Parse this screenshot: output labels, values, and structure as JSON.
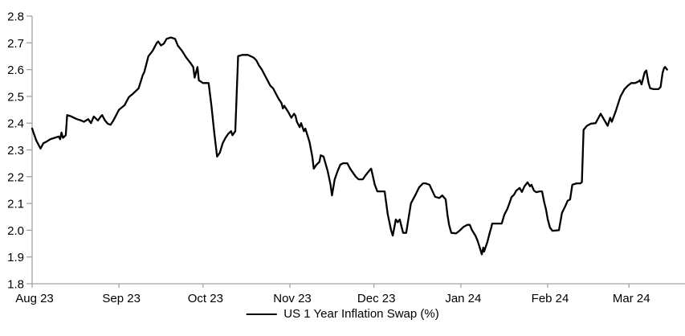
{
  "chart_data": {
    "type": "line",
    "title": "",
    "xlabel": "",
    "ylabel": "",
    "x_unit": "days since 1 Aug 2023",
    "xlim": [
      0,
      233
    ],
    "ylim": [
      1.8,
      2.8
    ],
    "grid": false,
    "legend_position": "bottom-center",
    "axis_color": "#a3a3a3",
    "text_color": "#000000",
    "y_ticks": [
      {
        "label": "2.8",
        "value": 2.8
      },
      {
        "label": "2.7",
        "value": 2.7
      },
      {
        "label": "2.6",
        "value": 2.6
      },
      {
        "label": "2.5",
        "value": 2.5
      },
      {
        "label": "2.4",
        "value": 2.4
      },
      {
        "label": "2.3",
        "value": 2.3
      },
      {
        "label": "2.2",
        "value": 2.2
      },
      {
        "label": "2.1",
        "value": 2.1
      },
      {
        "label": "2.0",
        "value": 2.0
      },
      {
        "label": "1.9",
        "value": 1.9
      },
      {
        "label": "1.8",
        "value": 1.8
      }
    ],
    "x_ticks": [
      {
        "label": "Aug 23",
        "day": 0
      },
      {
        "label": "Sep 23",
        "day": 31
      },
      {
        "label": "Oct 23",
        "day": 61
      },
      {
        "label": "Nov 23",
        "day": 92
      },
      {
        "label": "Dec 23",
        "day": 122
      },
      {
        "label": "Jan 24",
        "day": 153
      },
      {
        "label": "Feb 24",
        "day": 184
      },
      {
        "label": "Mar 24",
        "day": 213
      }
    ],
    "series": [
      {
        "name": "US 1 Year Inflation Swap (%)",
        "color": "#000000",
        "points": [
          [
            0,
            2.38
          ],
          [
            0.5,
            2.365
          ],
          [
            1.5,
            2.335
          ],
          [
            2.5,
            2.315
          ],
          [
            3,
            2.305
          ],
          [
            4,
            2.325
          ],
          [
            5,
            2.33
          ],
          [
            6.5,
            2.34
          ],
          [
            8,
            2.345
          ],
          [
            9.5,
            2.35
          ],
          [
            10,
            2.34
          ],
          [
            10.5,
            2.365
          ],
          [
            11,
            2.345
          ],
          [
            12,
            2.355
          ],
          [
            12.5,
            2.43
          ],
          [
            14,
            2.425
          ],
          [
            16,
            2.415
          ],
          [
            17.5,
            2.41
          ],
          [
            18.5,
            2.405
          ],
          [
            20,
            2.415
          ],
          [
            21,
            2.4
          ],
          [
            22,
            2.425
          ],
          [
            23.5,
            2.41
          ],
          [
            24.5,
            2.425
          ],
          [
            25,
            2.43
          ],
          [
            26,
            2.41
          ],
          [
            27,
            2.398
          ],
          [
            28,
            2.394
          ],
          [
            29,
            2.41
          ],
          [
            30,
            2.43
          ],
          [
            31,
            2.45
          ],
          [
            33,
            2.467
          ],
          [
            34.5,
            2.497
          ],
          [
            36,
            2.51
          ],
          [
            38,
            2.53
          ],
          [
            39.5,
            2.58
          ],
          [
            40,
            2.59
          ],
          [
            41.5,
            2.65
          ],
          [
            43,
            2.67
          ],
          [
            44.5,
            2.7
          ],
          [
            45,
            2.705
          ],
          [
            46,
            2.69
          ],
          [
            47,
            2.697
          ],
          [
            48,
            2.715
          ],
          [
            49.5,
            2.72
          ],
          [
            51,
            2.715
          ],
          [
            52,
            2.69
          ],
          [
            53.5,
            2.67
          ],
          [
            55,
            2.645
          ],
          [
            56.5,
            2.625
          ],
          [
            57.5,
            2.61
          ],
          [
            58,
            2.57
          ],
          [
            59,
            2.61
          ],
          [
            59.5,
            2.56
          ],
          [
            61,
            2.55
          ],
          [
            63,
            2.55
          ],
          [
            64,
            2.465
          ],
          [
            65,
            2.365
          ],
          [
            66,
            2.275
          ],
          [
            67,
            2.29
          ],
          [
            68,
            2.325
          ],
          [
            69,
            2.345
          ],
          [
            70,
            2.36
          ],
          [
            71,
            2.37
          ],
          [
            71.5,
            2.355
          ],
          [
            72.5,
            2.37
          ],
          [
            73.5,
            2.65
          ],
          [
            75,
            2.655
          ],
          [
            77,
            2.655
          ],
          [
            78,
            2.65
          ],
          [
            79,
            2.645
          ],
          [
            80,
            2.635
          ],
          [
            81,
            2.615
          ],
          [
            82,
            2.6
          ],
          [
            83,
            2.58
          ],
          [
            84,
            2.56
          ],
          [
            85,
            2.54
          ],
          [
            86,
            2.53
          ],
          [
            87,
            2.51
          ],
          [
            88,
            2.49
          ],
          [
            89,
            2.475
          ],
          [
            89.5,
            2.455
          ],
          [
            90,
            2.465
          ],
          [
            91.5,
            2.44
          ],
          [
            92.5,
            2.42
          ],
          [
            93.5,
            2.435
          ],
          [
            94,
            2.427
          ],
          [
            94.5,
            2.405
          ],
          [
            95.5,
            2.385
          ],
          [
            96,
            2.4
          ],
          [
            97,
            2.37
          ],
          [
            97.5,
            2.38
          ],
          [
            99,
            2.33
          ],
          [
            100,
            2.275
          ],
          [
            100.5,
            2.23
          ],
          [
            101.5,
            2.245
          ],
          [
            102.5,
            2.255
          ],
          [
            103,
            2.28
          ],
          [
            104,
            2.275
          ],
          [
            105.5,
            2.22
          ],
          [
            106.5,
            2.17
          ],
          [
            107,
            2.13
          ],
          [
            108,
            2.19
          ],
          [
            109,
            2.22
          ],
          [
            110,
            2.245
          ],
          [
            111,
            2.25
          ],
          [
            112.5,
            2.25
          ],
          [
            113.5,
            2.23
          ],
          [
            114.5,
            2.215
          ],
          [
            115.5,
            2.2
          ],
          [
            116.5,
            2.19
          ],
          [
            118,
            2.19
          ],
          [
            119,
            2.205
          ],
          [
            120.5,
            2.225
          ],
          [
            121,
            2.23
          ],
          [
            122.3,
            2.17
          ],
          [
            123.2,
            2.145
          ],
          [
            125.8,
            2.145
          ],
          [
            126.9,
            2.06
          ],
          [
            128.1,
            2.0
          ],
          [
            128.7,
            1.98
          ],
          [
            129.8,
            2.04
          ],
          [
            130.5,
            2.03
          ],
          [
            131.2,
            2.04
          ],
          [
            132.4,
            1.99
          ],
          [
            133.5,
            1.99
          ],
          [
            135.2,
            2.1
          ],
          [
            136.7,
            2.13
          ],
          [
            138.1,
            2.16
          ],
          [
            139.5,
            2.175
          ],
          [
            140.4,
            2.175
          ],
          [
            141.8,
            2.17
          ],
          [
            143.8,
            2.125
          ],
          [
            145.3,
            2.12
          ],
          [
            146.4,
            2.13
          ],
          [
            147.6,
            2.115
          ],
          [
            148.2,
            2.06
          ],
          [
            148.8,
            2.02
          ],
          [
            149.6,
            1.99
          ],
          [
            151.3,
            1.988
          ],
          [
            152.4,
            1.997
          ],
          [
            153.9,
            2.012
          ],
          [
            155.3,
            2.02
          ],
          [
            156.2,
            2.02
          ],
          [
            157,
            2.0
          ],
          [
            158.2,
            1.98
          ],
          [
            159,
            1.96
          ],
          [
            159.6,
            1.94
          ],
          [
            160.5,
            1.91
          ],
          [
            161,
            1.935
          ],
          [
            161.3,
            1.92
          ],
          [
            162.5,
            1.957
          ],
          [
            163.3,
            1.99
          ],
          [
            163.9,
            2.012
          ],
          [
            164.2,
            2.025
          ],
          [
            167.6,
            2.025
          ],
          [
            168.5,
            2.057
          ],
          [
            169.6,
            2.08
          ],
          [
            170.5,
            2.105
          ],
          [
            171.1,
            2.124
          ],
          [
            172,
            2.133
          ],
          [
            172.8,
            2.148
          ],
          [
            174,
            2.158
          ],
          [
            174.8,
            2.143
          ],
          [
            175.7,
            2.164
          ],
          [
            176.8,
            2.179
          ],
          [
            177.7,
            2.164
          ],
          [
            178.2,
            2.17
          ],
          [
            179.1,
            2.148
          ],
          [
            179.9,
            2.142
          ],
          [
            181.1,
            2.145
          ],
          [
            182,
            2.145
          ],
          [
            182.8,
            2.103
          ],
          [
            183.4,
            2.078
          ],
          [
            184,
            2.042
          ],
          [
            184.8,
            2.01
          ],
          [
            185.7,
            1.998
          ],
          [
            188,
            2.0
          ],
          [
            189.1,
            2.065
          ],
          [
            190.3,
            2.09
          ],
          [
            191.1,
            2.11
          ],
          [
            192,
            2.115
          ],
          [
            192.8,
            2.17
          ],
          [
            194.3,
            2.175
          ],
          [
            195.7,
            2.175
          ],
          [
            196.2,
            2.18
          ],
          [
            196.8,
            2.375
          ],
          [
            198,
            2.39
          ],
          [
            199.4,
            2.398
          ],
          [
            201.1,
            2.4
          ],
          [
            202.9,
            2.435
          ],
          [
            204.3,
            2.41
          ],
          [
            205.4,
            2.39
          ],
          [
            206.3,
            2.42
          ],
          [
            206.9,
            2.405
          ],
          [
            208.3,
            2.445
          ],
          [
            209.2,
            2.475
          ],
          [
            210,
            2.5
          ],
          [
            211.4,
            2.527
          ],
          [
            212.6,
            2.54
          ],
          [
            213.8,
            2.55
          ],
          [
            215.2,
            2.55
          ],
          [
            216.3,
            2.555
          ],
          [
            216.9,
            2.56
          ],
          [
            217.5,
            2.545
          ],
          [
            218.6,
            2.59
          ],
          [
            219.2,
            2.597
          ],
          [
            220,
            2.55
          ],
          [
            220.6,
            2.53
          ],
          [
            221.8,
            2.527
          ],
          [
            223.5,
            2.527
          ],
          [
            224.3,
            2.535
          ],
          [
            225,
            2.588
          ],
          [
            225.5,
            2.605
          ],
          [
            225.9,
            2.61
          ],
          [
            226.6,
            2.6
          ]
        ]
      }
    ]
  }
}
